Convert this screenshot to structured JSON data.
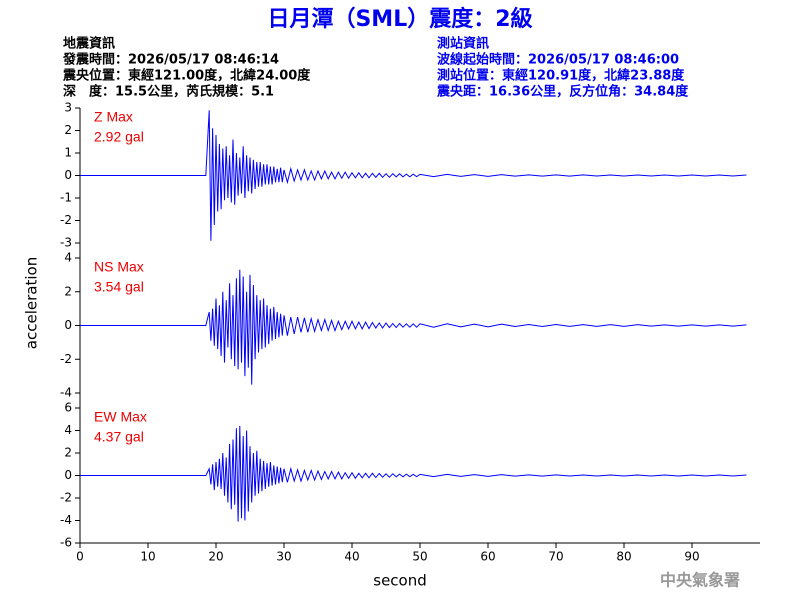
{
  "chart_data": {
    "type": "line",
    "title": "日月潭（SML）震度：2級",
    "event_info": [
      "地震資訊",
      "發震時間：2026/05/17 08:46:14",
      "震央位置：東經121.00度，北緯24.00度",
      "深　度：15.5公里，芮氏規模：5.1"
    ],
    "station_info": [
      "測站資訊",
      "波線起始時間：2026/05/17 08:46:00",
      "測站位置：東經120.91度，北緯23.88度",
      "震央距：16.36公里，反方位角：34.84度"
    ],
    "xlabel": "second",
    "ylabel": "acceleration",
    "footer": "中央氣象署",
    "xlim": [
      0,
      100
    ],
    "xticks": [
      0,
      10,
      20,
      30,
      40,
      50,
      60,
      70,
      80,
      90
    ],
    "x": [
      0,
      18.5,
      19,
      19.25,
      19.5,
      19.75,
      20,
      20.25,
      20.5,
      20.75,
      21,
      21.25,
      21.5,
      21.75,
      22,
      22.25,
      22.5,
      22.75,
      23,
      23.25,
      23.5,
      23.75,
      24,
      24.25,
      24.5,
      24.75,
      25,
      25.25,
      25.5,
      25.75,
      26,
      26.25,
      26.5,
      26.75,
      27,
      27.25,
      27.5,
      27.75,
      28,
      28.25,
      28.5,
      28.75,
      29,
      29.25,
      29.5,
      29.75,
      30,
      30.5,
      31,
      31.5,
      32,
      32.5,
      33,
      33.5,
      34,
      34.5,
      35,
      35.5,
      36,
      36.5,
      37,
      37.5,
      38,
      38.5,
      39,
      39.5,
      40,
      40.5,
      41,
      41.5,
      42,
      42.5,
      43,
      43.5,
      44,
      44.5,
      45,
      45.5,
      46,
      46.5,
      47,
      47.5,
      48,
      48.5,
      49,
      49.5,
      50,
      52,
      54,
      56,
      58,
      60,
      62,
      64,
      66,
      68,
      70,
      72,
      74,
      76,
      78,
      80,
      82,
      84,
      86,
      88,
      90,
      92,
      94,
      96,
      98
    ],
    "series": [
      {
        "name": "Z Max",
        "annotation": "2.92 gal",
        "color": "#0000ff",
        "ylim": [
          -3,
          3
        ],
        "yticks": [
          -3,
          -2,
          -1,
          0,
          1,
          2,
          3
        ],
        "values": [
          0,
          0,
          2.9,
          -2.9,
          2.1,
          -2.2,
          1.8,
          -1.6,
          1.4,
          -1.5,
          1.2,
          -1.1,
          1.3,
          -1.0,
          0.9,
          -1.2,
          1.6,
          -1.3,
          1.0,
          -0.9,
          0.8,
          -0.8,
          1.3,
          -1.0,
          0.9,
          -0.7,
          0.8,
          -0.8,
          0.7,
          -0.6,
          0.6,
          -0.5,
          0.6,
          -0.5,
          0.5,
          -0.4,
          0.5,
          -0.4,
          0.4,
          -0.4,
          0.4,
          -0.3,
          0.3,
          -0.3,
          0.35,
          -0.3,
          0.25,
          -0.3,
          0.3,
          -0.25,
          0.25,
          -0.2,
          0.25,
          -0.2,
          0.2,
          -0.2,
          0.2,
          -0.15,
          0.2,
          -0.15,
          0.15,
          -0.15,
          0.15,
          -0.12,
          0.15,
          -0.12,
          0.12,
          -0.1,
          0.12,
          -0.1,
          0.1,
          -0.1,
          0.1,
          -0.08,
          0.1,
          -0.08,
          0.08,
          -0.08,
          0.08,
          -0.06,
          0.08,
          -0.06,
          0.06,
          -0.06,
          0.06,
          -0.05,
          0.05,
          -0.05,
          0.05,
          -0.04,
          0.04,
          -0.04,
          0.04,
          -0.03,
          0.03,
          -0.03,
          0.03,
          -0.03,
          0.03,
          -0.02,
          0.02,
          -0.02,
          0.02,
          -0.02,
          0.02,
          -0.02,
          0.02,
          -0.02,
          0.02,
          -0.02,
          0.02
        ]
      },
      {
        "name": "NS Max",
        "annotation": "3.54 gal",
        "color": "#0000ff",
        "ylim": [
          -4,
          4
        ],
        "yticks": [
          -4,
          -2,
          0,
          2,
          4
        ],
        "values": [
          0,
          0,
          0.8,
          -0.9,
          1.0,
          -1.2,
          1.6,
          -1.4,
          1.2,
          -1.8,
          2.0,
          -2.2,
          1.5,
          -1.3,
          2.5,
          -2.0,
          1.8,
          -2.4,
          2.8,
          -2.6,
          3.3,
          -2.2,
          2.9,
          -3.0,
          2.0,
          -2.5,
          3.0,
          -3.5,
          2.4,
          -2.0,
          1.8,
          -1.6,
          1.5,
          -1.4,
          1.6,
          -1.3,
          1.2,
          -1.1,
          1.0,
          -0.9,
          1.1,
          -0.8,
          0.8,
          -0.7,
          0.7,
          -0.6,
          0.6,
          -0.6,
          0.5,
          -0.5,
          0.5,
          -0.4,
          0.45,
          -0.4,
          0.4,
          -0.35,
          0.35,
          -0.3,
          0.35,
          -0.3,
          0.3,
          -0.3,
          0.25,
          -0.25,
          0.25,
          -0.2,
          0.25,
          -0.2,
          0.2,
          -0.2,
          0.2,
          -0.18,
          0.18,
          -0.15,
          0.15,
          -0.15,
          0.15,
          -0.12,
          0.12,
          -0.12,
          0.12,
          -0.1,
          0.1,
          -0.1,
          0.1,
          -0.1,
          0.1,
          -0.1,
          0.1,
          -0.08,
          0.08,
          -0.08,
          0.08,
          -0.06,
          0.06,
          -0.06,
          0.06,
          -0.05,
          0.05,
          -0.05,
          0.05,
          -0.05,
          0.05,
          -0.04,
          0.04,
          -0.04,
          0.04,
          -0.04,
          0.04,
          -0.04,
          0.04
        ]
      },
      {
        "name": "EW Max",
        "annotation": "4.37 gal",
        "color": "#0000ff",
        "ylim": [
          -6,
          6
        ],
        "yticks": [
          -6,
          -4,
          -2,
          0,
          2,
          4,
          6
        ],
        "values": [
          0,
          0,
          0.6,
          -0.8,
          1.0,
          -1.3,
          1.2,
          -1.0,
          1.5,
          -1.2,
          2.0,
          -1.8,
          1.6,
          -2.4,
          2.8,
          -3.0,
          3.2,
          -2.6,
          4.2,
          -4.1,
          4.4,
          -3.8,
          3.5,
          -4.0,
          4.0,
          -3.2,
          2.6,
          -2.4,
          2.0,
          -1.8,
          2.2,
          -1.6,
          1.5,
          -1.4,
          1.3,
          -1.2,
          1.1,
          -1.0,
          1.2,
          -0.9,
          0.9,
          -0.8,
          0.8,
          -0.7,
          0.7,
          -0.6,
          0.6,
          -0.6,
          0.6,
          -0.5,
          0.5,
          -0.5,
          0.45,
          -0.4,
          0.45,
          -0.4,
          0.4,
          -0.35,
          0.35,
          -0.3,
          0.35,
          -0.3,
          0.3,
          -0.3,
          0.25,
          -0.25,
          0.25,
          -0.25,
          0.2,
          -0.2,
          0.2,
          -0.2,
          0.2,
          -0.18,
          0.18,
          -0.15,
          0.15,
          -0.15,
          0.15,
          -0.12,
          0.12,
          -0.12,
          0.12,
          -0.1,
          0.1,
          -0.1,
          0.1,
          -0.1,
          0.1,
          -0.08,
          0.08,
          -0.08,
          0.08,
          -0.06,
          0.06,
          -0.06,
          0.06,
          -0.05,
          0.05,
          -0.05,
          0.05,
          -0.05,
          0.05,
          -0.04,
          0.04,
          -0.04,
          0.04,
          -0.04,
          0.04,
          -0.04,
          0.04
        ]
      }
    ]
  }
}
